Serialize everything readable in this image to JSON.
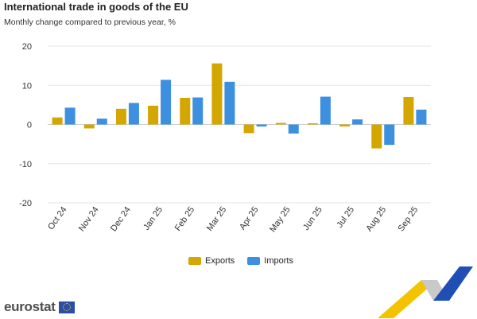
{
  "header": {
    "title": "International trade in goods of the EU",
    "subtitle": "Monthly change compared to previous year, %"
  },
  "colors": {
    "exports": "#d4a600",
    "imports": "#3d8fe0",
    "grid": "#e6e6e6",
    "zero_line": "#cfcfcf"
  },
  "chart_data": {
    "type": "bar",
    "title": "International trade in goods of the EU",
    "subtitle": "Monthly change compared to previous year, %",
    "xlabel": "",
    "ylabel": "",
    "ylim": [
      -20,
      20
    ],
    "yticks": [
      20,
      10,
      0,
      -10,
      -20
    ],
    "categories": [
      "Oct 24",
      "Nov 24",
      "Dec 24",
      "Jan 25",
      "Feb 25",
      "Mar 25",
      "Apr 25",
      "May 25",
      "Jun 25",
      "Jul 25",
      "Aug 25",
      "Sep 25"
    ],
    "series": [
      {
        "name": "Exports",
        "values": [
          1.8,
          -1.0,
          4.0,
          4.8,
          6.8,
          15.6,
          -2.2,
          0.4,
          0.3,
          -0.5,
          -6.1,
          7.0
        ]
      },
      {
        "name": "Imports",
        "values": [
          4.3,
          1.5,
          5.5,
          11.4,
          6.9,
          10.9,
          -0.5,
          -2.3,
          7.1,
          1.3,
          -5.2,
          3.8
        ]
      }
    ],
    "grid": true,
    "legend": "bottom-center"
  },
  "legend": {
    "exports_label": "Exports",
    "imports_label": "Imports"
  },
  "branding": {
    "logo_text": "eurostat"
  }
}
